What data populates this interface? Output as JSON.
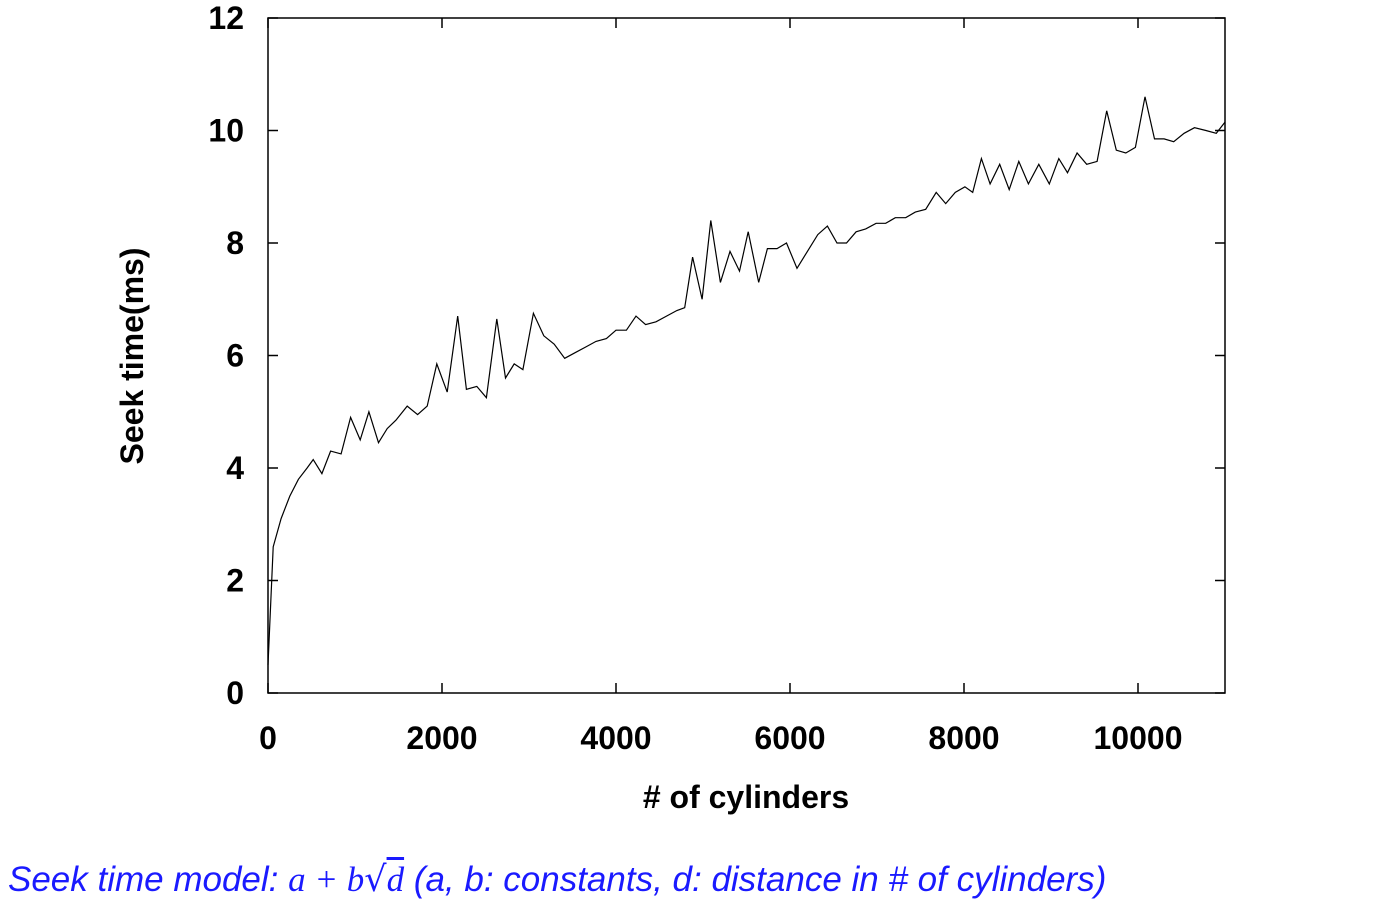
{
  "chart_data": {
    "type": "line",
    "xlabel": "# of cylinders",
    "ylabel": "Seek time(ms)",
    "xlim": [
      0,
      11000
    ],
    "ylim": [
      0,
      12
    ],
    "xticks": [
      0,
      2000,
      4000,
      6000,
      8000,
      10000
    ],
    "yticks": [
      0,
      2,
      4,
      6,
      8,
      10,
      12
    ],
    "xtick_labels": [
      "0",
      "2000",
      "4000",
      "6000",
      "8000",
      "10000"
    ],
    "ytick_labels": [
      "0",
      "2",
      "4",
      "6",
      "8",
      "10",
      "12"
    ],
    "grid": false,
    "series": [
      {
        "color": "#000000",
        "points": [
          [
            0,
            0.5
          ],
          [
            60,
            2.6
          ],
          [
            150,
            3.1
          ],
          [
            250,
            3.5
          ],
          [
            350,
            3.8
          ],
          [
            450,
            4.0
          ],
          [
            520,
            4.15
          ],
          [
            620,
            3.9
          ],
          [
            720,
            4.3
          ],
          [
            840,
            4.25
          ],
          [
            950,
            4.9
          ],
          [
            1060,
            4.5
          ],
          [
            1160,
            5.0
          ],
          [
            1270,
            4.45
          ],
          [
            1370,
            4.7
          ],
          [
            1470,
            4.85
          ],
          [
            1600,
            5.1
          ],
          [
            1720,
            4.95
          ],
          [
            1830,
            5.1
          ],
          [
            1940,
            5.85
          ],
          [
            2060,
            5.35
          ],
          [
            2180,
            6.7
          ],
          [
            2280,
            5.4
          ],
          [
            2400,
            5.45
          ],
          [
            2510,
            5.25
          ],
          [
            2630,
            6.65
          ],
          [
            2730,
            5.6
          ],
          [
            2830,
            5.85
          ],
          [
            2930,
            5.75
          ],
          [
            3050,
            6.75
          ],
          [
            3170,
            6.35
          ],
          [
            3290,
            6.2
          ],
          [
            3410,
            5.95
          ],
          [
            3530,
            6.05
          ],
          [
            3650,
            6.15
          ],
          [
            3770,
            6.25
          ],
          [
            3890,
            6.3
          ],
          [
            4000,
            6.45
          ],
          [
            4120,
            6.45
          ],
          [
            4230,
            6.7
          ],
          [
            4340,
            6.55
          ],
          [
            4460,
            6.6
          ],
          [
            4580,
            6.7
          ],
          [
            4700,
            6.8
          ],
          [
            4790,
            6.85
          ],
          [
            4880,
            7.75
          ],
          [
            4990,
            7.0
          ],
          [
            5090,
            8.4
          ],
          [
            5200,
            7.3
          ],
          [
            5310,
            7.85
          ],
          [
            5420,
            7.5
          ],
          [
            5520,
            8.2
          ],
          [
            5640,
            7.3
          ],
          [
            5740,
            7.9
          ],
          [
            5850,
            7.9
          ],
          [
            5960,
            8.0
          ],
          [
            6080,
            7.55
          ],
          [
            6200,
            7.85
          ],
          [
            6320,
            8.15
          ],
          [
            6430,
            8.3
          ],
          [
            6540,
            8.0
          ],
          [
            6650,
            8.0
          ],
          [
            6760,
            8.2
          ],
          [
            6870,
            8.25
          ],
          [
            6990,
            8.35
          ],
          [
            7100,
            8.35
          ],
          [
            7210,
            8.45
          ],
          [
            7330,
            8.45
          ],
          [
            7440,
            8.55
          ],
          [
            7560,
            8.6
          ],
          [
            7680,
            8.9
          ],
          [
            7790,
            8.7
          ],
          [
            7900,
            8.9
          ],
          [
            8010,
            9.0
          ],
          [
            8100,
            8.9
          ],
          [
            8200,
            9.5
          ],
          [
            8300,
            9.05
          ],
          [
            8410,
            9.4
          ],
          [
            8520,
            8.95
          ],
          [
            8630,
            9.45
          ],
          [
            8740,
            9.05
          ],
          [
            8860,
            9.4
          ],
          [
            8980,
            9.05
          ],
          [
            9090,
            9.5
          ],
          [
            9190,
            9.25
          ],
          [
            9300,
            9.6
          ],
          [
            9410,
            9.4
          ],
          [
            9530,
            9.45
          ],
          [
            9640,
            10.35
          ],
          [
            9750,
            9.65
          ],
          [
            9860,
            9.6
          ],
          [
            9970,
            9.7
          ],
          [
            10080,
            10.6
          ],
          [
            10190,
            9.85
          ],
          [
            10300,
            9.85
          ],
          [
            10410,
            9.8
          ],
          [
            10530,
            9.95
          ],
          [
            10650,
            10.05
          ],
          [
            10780,
            10.0
          ],
          [
            10900,
            9.95
          ],
          [
            11000,
            10.15
          ]
        ]
      }
    ]
  },
  "caption": {
    "prefix": "Seek time model: ",
    "formula_a": "a",
    "formula_plus": " + ",
    "formula_b": "b",
    "formula_sqrt": "√",
    "formula_d": "d",
    "suffix": "  (a, b: constants, d: distance in # of cylinders)"
  }
}
